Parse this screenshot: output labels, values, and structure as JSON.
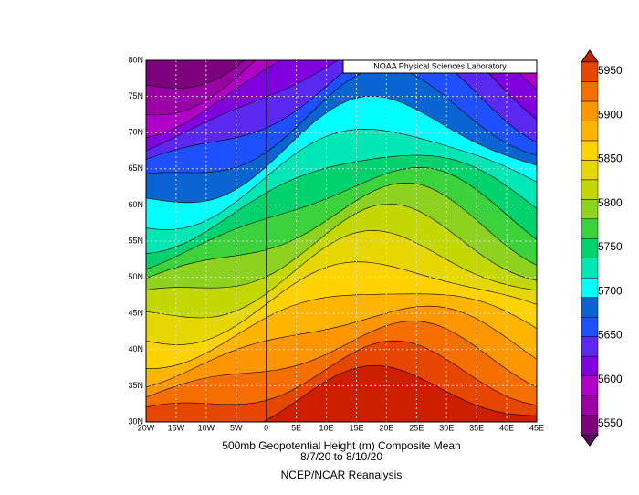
{
  "header": {
    "credit": "NOAA Physical Sciences Laboratory"
  },
  "map": {
    "lat_labels": [
      "80N",
      "75N",
      "70N",
      "65N",
      "60N",
      "55N",
      "50N",
      "45N",
      "40N",
      "35N",
      "30N"
    ],
    "lon_labels": [
      "20W",
      "15W",
      "10W",
      "5W",
      "0",
      "5E",
      "10E",
      "15E",
      "20E",
      "25E",
      "30E",
      "35E",
      "40E",
      "45E"
    ]
  },
  "colorbar": {
    "values": [
      5550,
      5600,
      5650,
      5700,
      5750,
      5800,
      5850,
      5900,
      5950
    ]
  },
  "caption": {
    "title": "500mb Geopotential Height (m) Composite Mean",
    "dates": "8/7/20  to 8/10/20",
    "source": "NCEP/NCAR Reanalysis"
  }
}
